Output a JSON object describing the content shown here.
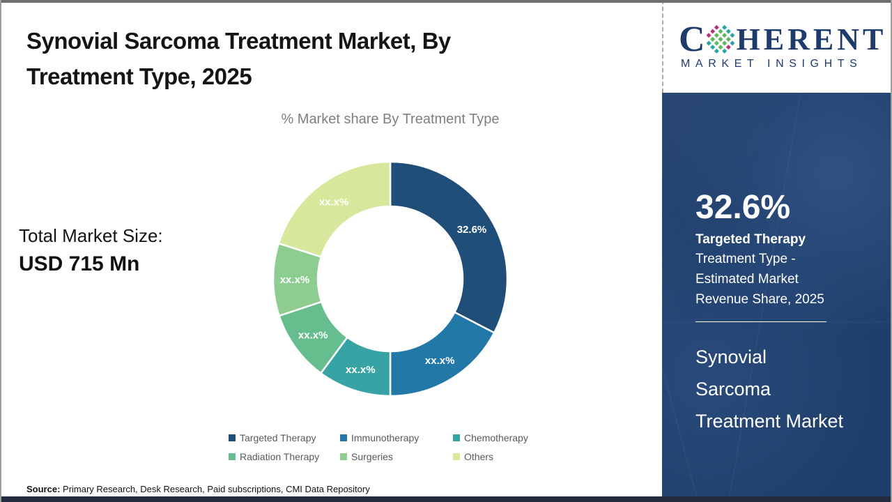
{
  "page": {
    "title": "Synovial Sarcoma Treatment Market, By Treatment Type, 2025"
  },
  "logo": {
    "brand_first_letter": "C",
    "brand_rest": "HERENT",
    "tagline": "MARKET INSIGHTS",
    "globe_icon": "dotted-globe",
    "brand_color": "#1e3b6d"
  },
  "total_market": {
    "label": "Total Market Size:",
    "value": "USD 715 Mn"
  },
  "chart_data": {
    "type": "pie",
    "donut": true,
    "title": "% Market share By Treatment Type",
    "categories": [
      "Targeted Therapy",
      "Immunotherapy",
      "Chemotherapy",
      "Radiation Therapy",
      "Surgeries",
      "Others"
    ],
    "values": [
      32.6,
      17.4,
      10.1,
      9.8,
      10.0,
      20.1
    ],
    "displayed_labels": [
      "32.6%",
      "xx.x%",
      "xx.x%",
      "xx.x%",
      "xx.x%",
      "xx.x%"
    ],
    "colors": [
      "#1f4e79",
      "#2279a8",
      "#38a3a5",
      "#66bd8e",
      "#8ecd90",
      "#d7e79b"
    ],
    "legend_position": "bottom",
    "start_angle_deg": 0,
    "inner_radius_ratio": 0.62
  },
  "source": {
    "label": "Source:",
    "text": " Primary Research, Desk Research, Paid subscriptions, CMI Data Repository"
  },
  "sidebar": {
    "stat_value": "32.6%",
    "stat_name": "Targeted Therapy",
    "stat_description": "Treatment Type - Estimated Market Revenue Share, 2025",
    "market_name": "Synovial Sarcoma Treatment Market",
    "background_color": "#1f3e6b"
  }
}
